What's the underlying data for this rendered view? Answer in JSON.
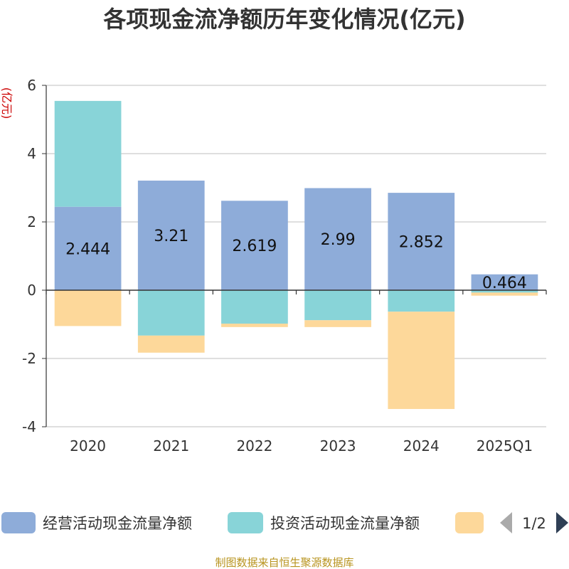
{
  "chart_data": {
    "type": "bar",
    "stacked": true,
    "title": "各项现金流净额历年变化情况(亿元)",
    "ylabel": "(亿元)",
    "categories": [
      "2020",
      "2021",
      "2022",
      "2023",
      "2024",
      "2025Q1"
    ],
    "ylim": [
      -4,
      6
    ],
    "yticks": [
      6,
      4,
      2,
      0,
      -2,
      -4
    ],
    "grid": true,
    "legend_position": "bottom",
    "series": [
      {
        "name": "经营活动现金流量净额",
        "color": "#8eacd9",
        "values": [
          2.444,
          3.21,
          2.619,
          2.99,
          2.852,
          0.464
        ],
        "labels": [
          "2.444",
          "3.21",
          "2.619",
          "2.99",
          "2.852",
          "0.464"
        ]
      },
      {
        "name": "投资活动现金流量净额",
        "color": "#88d4d8",
        "values": [
          3.1,
          -1.33,
          -0.98,
          -0.88,
          -0.63,
          -0.07
        ]
      },
      {
        "name": "",
        "color": "#fdd89a",
        "values": [
          -1.05,
          -0.5,
          -0.1,
          -0.2,
          -2.85,
          -0.09
        ]
      }
    ],
    "legend_page": "1/2"
  },
  "source_text": "制图数据来自恒生聚源数据库"
}
